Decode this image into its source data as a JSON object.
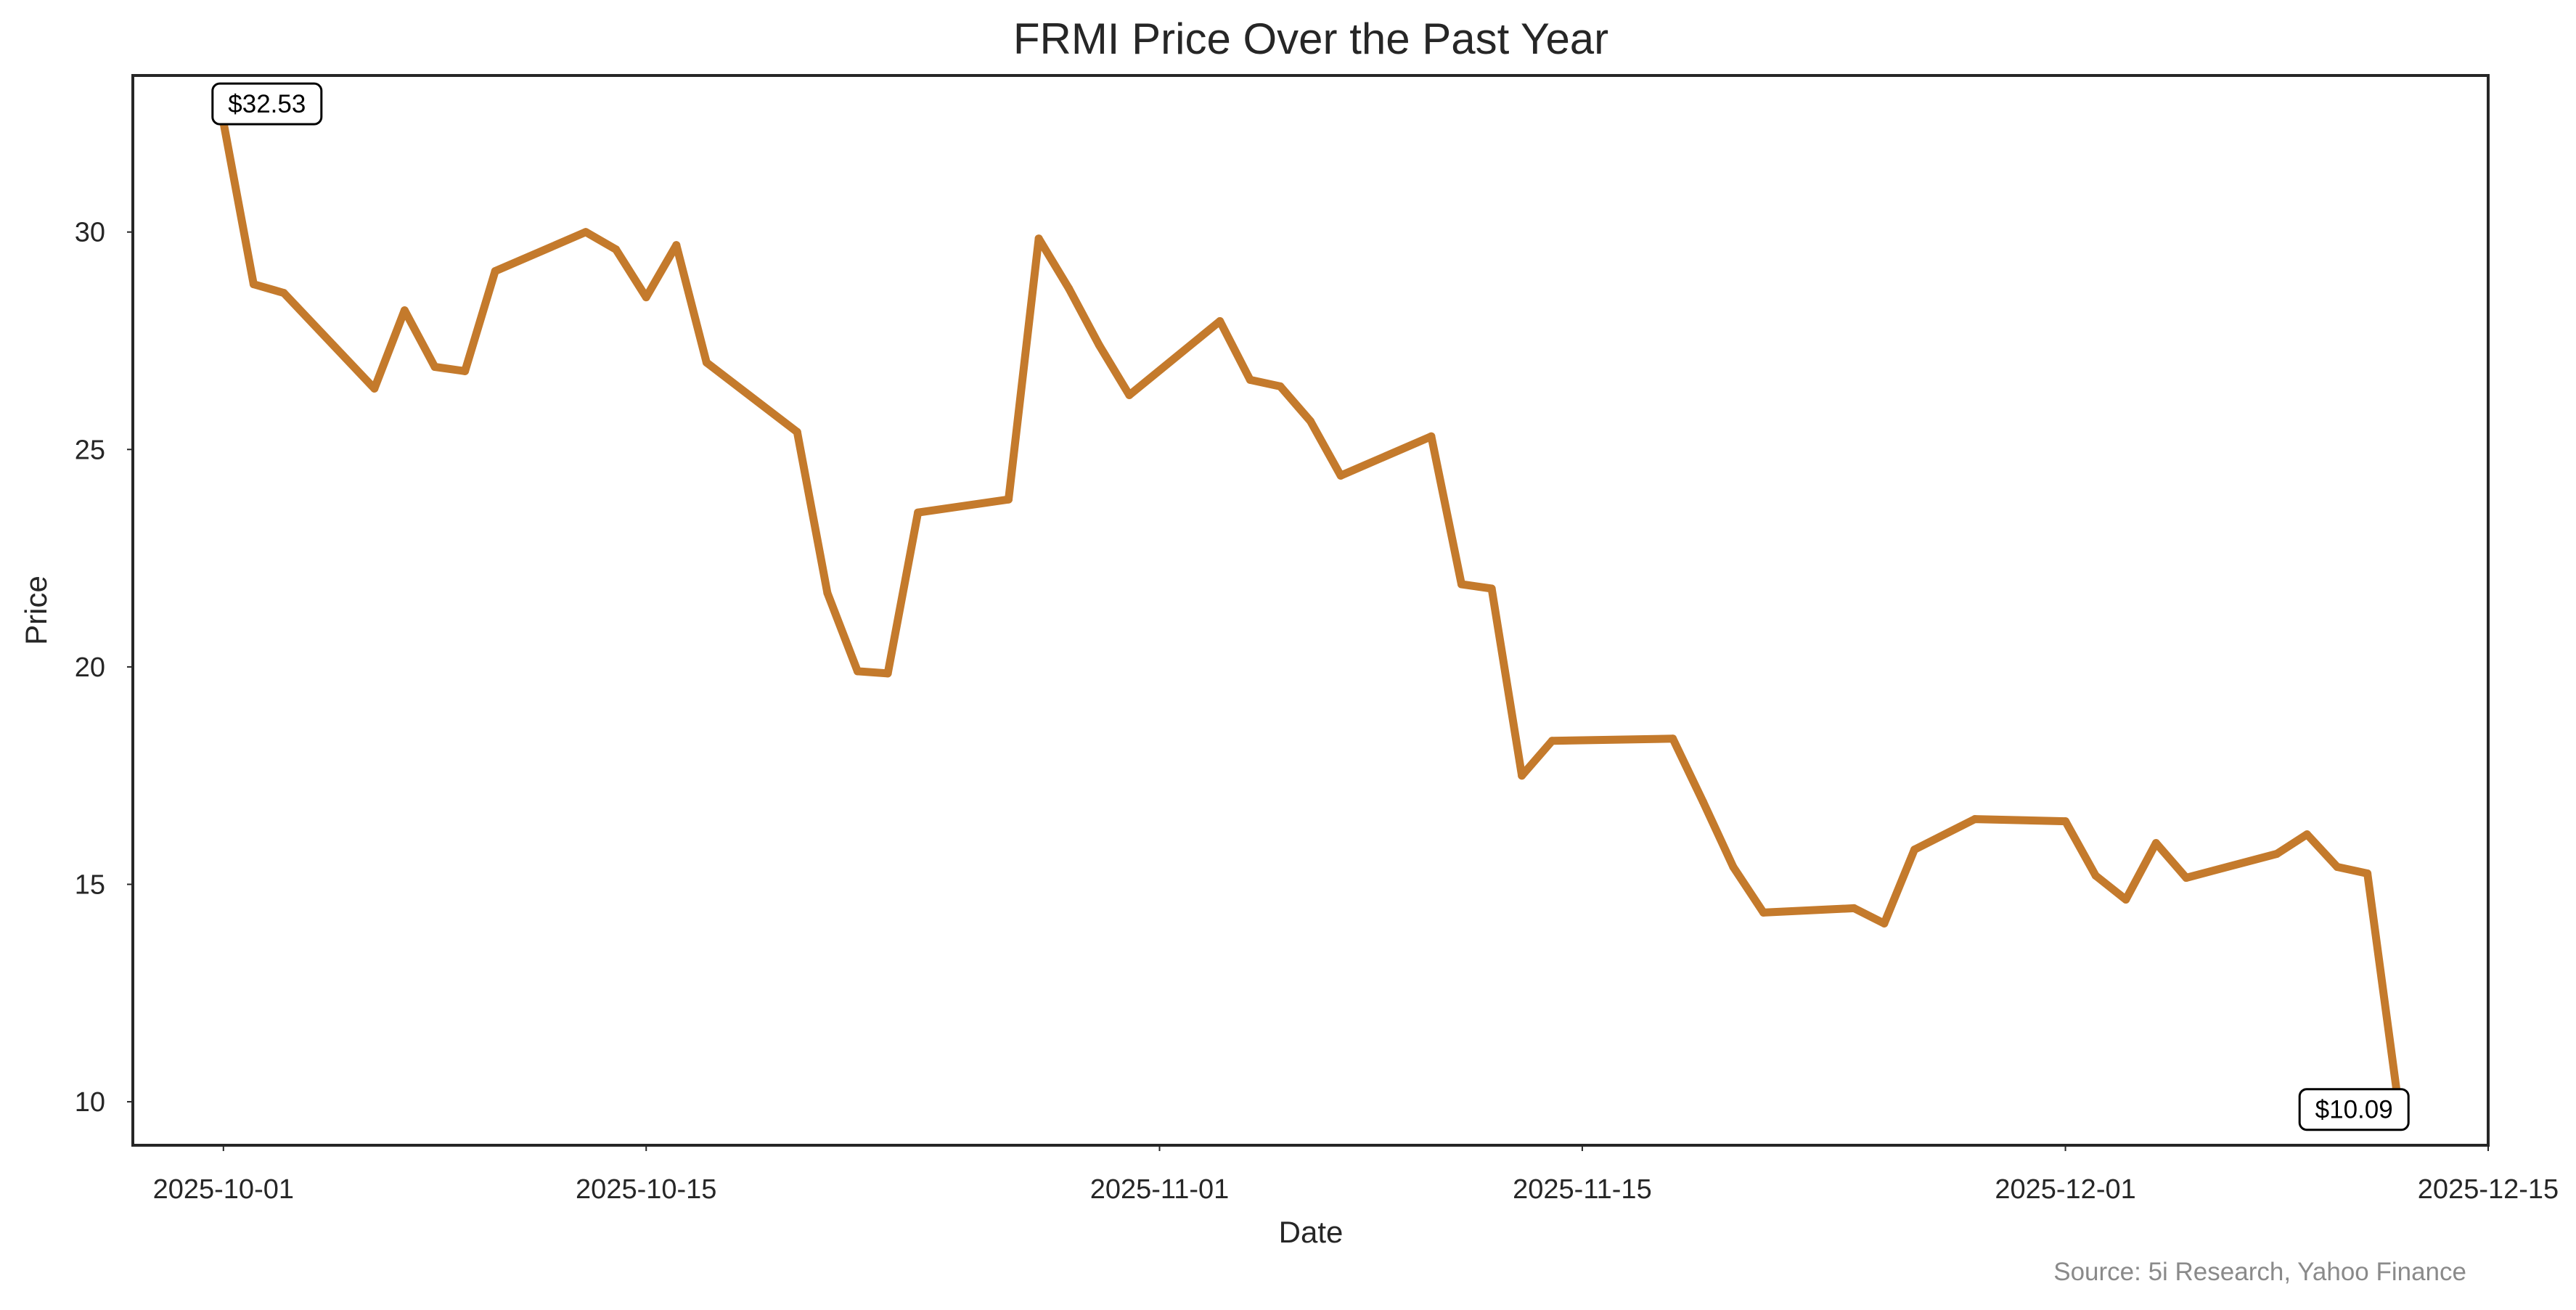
{
  "chart_data": {
    "type": "line",
    "title": "FRMI Price Over the Past Year",
    "xlabel": "Date",
    "ylabel": "Price",
    "source": "Source: 5i Research, Yahoo Finance",
    "x_tick_labels": [
      "2025-10-01",
      "2025-10-15",
      "2025-11-01",
      "2025-11-15",
      "2025-12-01",
      "2025-12-15"
    ],
    "y_tick_labels": [
      "10",
      "15",
      "20",
      "25",
      "30"
    ],
    "ylim": [
      9.0,
      33.6
    ],
    "xlim": [
      "2025-09-28",
      "2025-12-15"
    ],
    "grid": false,
    "line_color": "#c47a2c",
    "annotations": [
      {
        "text": "$32.53",
        "date": "2025-10-01",
        "value": 32.53
      },
      {
        "text": "$10.09",
        "date": "2025-12-12",
        "value": 10.09
      }
    ],
    "series": [
      {
        "x": [
          "2025-10-01",
          "2025-10-02",
          "2025-10-03",
          "2025-10-06",
          "2025-10-07",
          "2025-10-08",
          "2025-10-09",
          "2025-10-10",
          "2025-10-13",
          "2025-10-14",
          "2025-10-15",
          "2025-10-16",
          "2025-10-17",
          "2025-10-20",
          "2025-10-21",
          "2025-10-22",
          "2025-10-23",
          "2025-10-24",
          "2025-10-27",
          "2025-10-28",
          "2025-10-29",
          "2025-10-30",
          "2025-10-31",
          "2025-11-03",
          "2025-11-04",
          "2025-11-05",
          "2025-11-06",
          "2025-11-07",
          "2025-11-10",
          "2025-11-11",
          "2025-11-12",
          "2025-11-13",
          "2025-11-14",
          "2025-11-18",
          "2025-11-19",
          "2025-11-20",
          "2025-11-21",
          "2025-11-24",
          "2025-11-25",
          "2025-11-26",
          "2025-11-28",
          "2025-12-01",
          "2025-12-02",
          "2025-12-03",
          "2025-12-04",
          "2025-12-05",
          "2025-12-08",
          "2025-12-09",
          "2025-12-10",
          "2025-12-11",
          "2025-12-12"
        ],
        "values": [
          32.53,
          28.8,
          28.6,
          26.4,
          28.2,
          26.9,
          26.8,
          29.1,
          30.0,
          29.6,
          28.5,
          29.7,
          27.0,
          25.4,
          21.7,
          19.9,
          19.85,
          23.55,
          23.85,
          29.85,
          28.7,
          27.4,
          26.25,
          27.95,
          26.6,
          26.45,
          25.65,
          24.4,
          25.3,
          21.9,
          21.8,
          17.5,
          18.3,
          18.35,
          16.9,
          15.4,
          14.35,
          14.45,
          14.1,
          15.8,
          16.5,
          16.45,
          15.2,
          14.65,
          15.95,
          15.15,
          15.7,
          16.15,
          15.4,
          15.25,
          10.09
        ]
      }
    ]
  }
}
